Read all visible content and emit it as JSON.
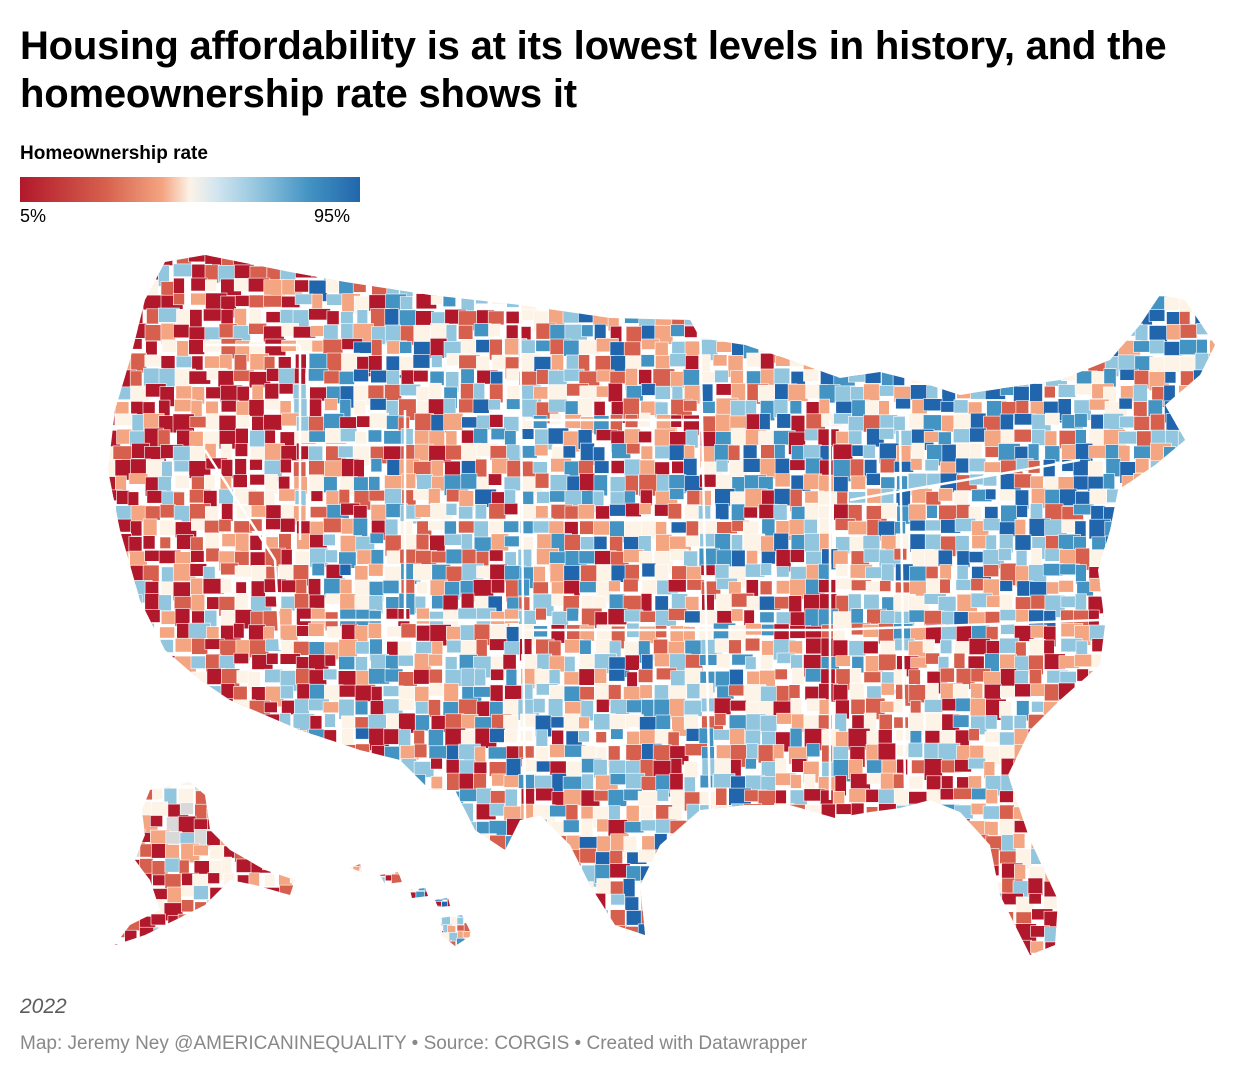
{
  "title": "Housing affordability is at its lowest levels in history, and the homeownership rate shows it",
  "legend": {
    "title": "Homeownership rate",
    "min_label": "5%",
    "max_label": "95%",
    "colors": [
      "#b2182b",
      "#d6604d",
      "#f4a582",
      "#fdf3e7",
      "#92c5de",
      "#4393c3",
      "#2166ac"
    ]
  },
  "map": {
    "region": "United States counties (incl. Alaska and Hawaii)",
    "missing_color": "#d9d9d9",
    "border_color": "#ffffff"
  },
  "year_note": "2022",
  "footer": "Map: Jeremy Ney @AMERICANINEQUALITY • Source: CORGIS • Created with Datawrapper"
}
